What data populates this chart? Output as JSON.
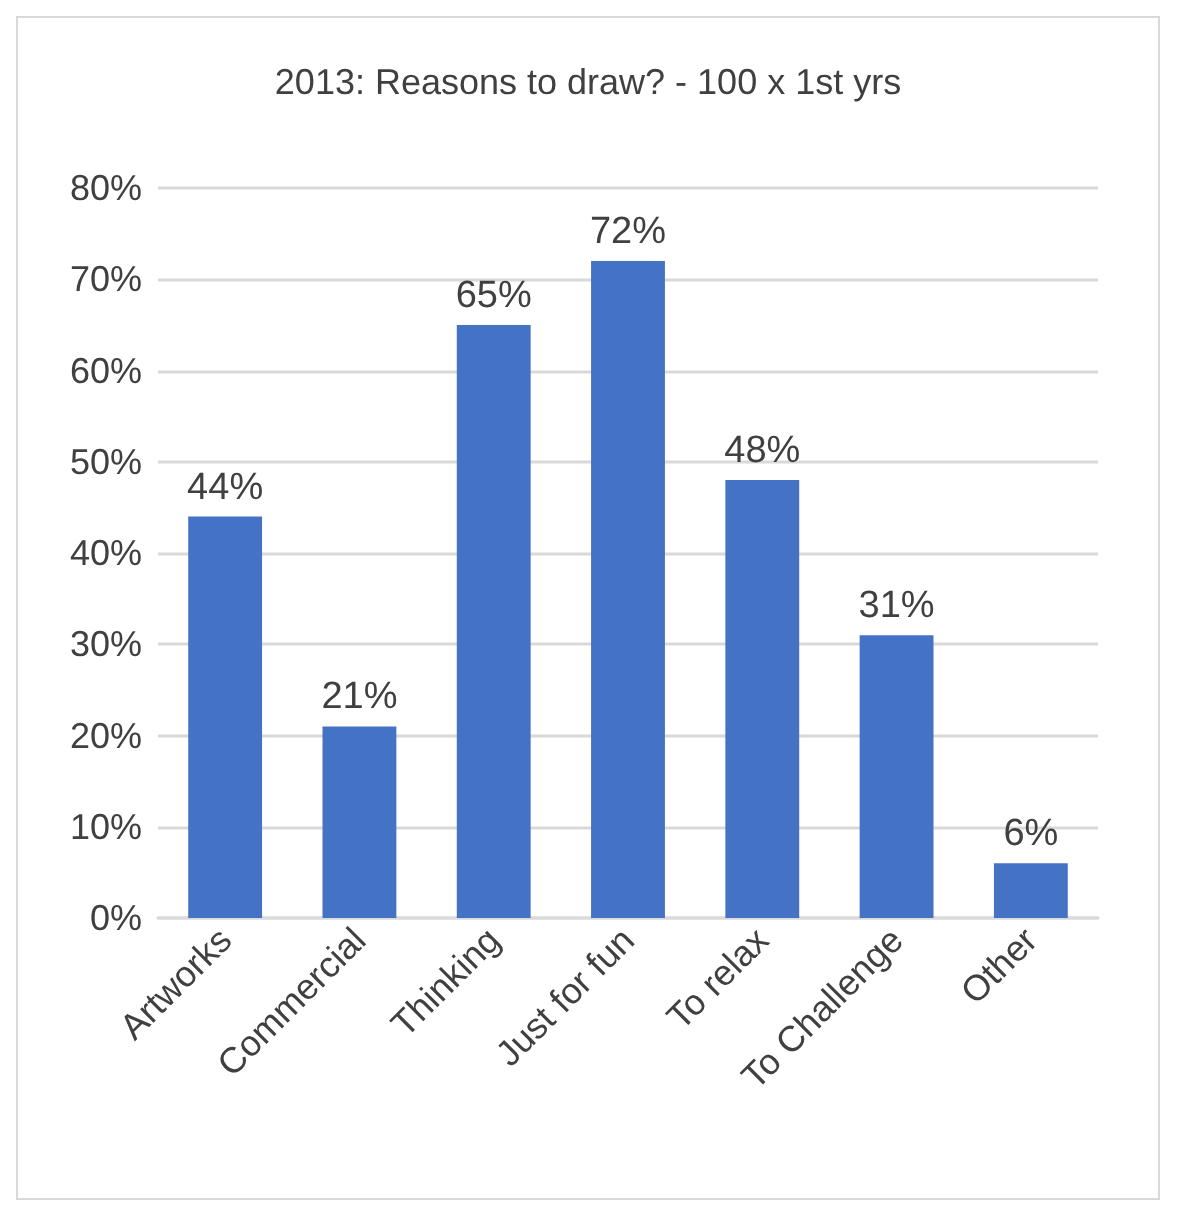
{
  "chart_data": {
    "type": "bar",
    "title": "2013: Reasons to draw? - 100 x 1st yrs",
    "categories": [
      "Artworks",
      "Commercial",
      "Thinking",
      "Just for fun",
      "To relax",
      "To Challenge",
      "Other"
    ],
    "values": [
      44,
      21,
      65,
      72,
      48,
      31,
      6
    ],
    "value_labels": [
      "44%",
      "21%",
      "65%",
      "72%",
      "48%",
      "31%",
      "6%"
    ],
    "color": "#4472c4",
    "ylim": [
      0,
      80
    ],
    "yticks": [
      {
        "value": 0,
        "label": "0%"
      },
      {
        "value": 10,
        "label": "10%"
      },
      {
        "value": 20,
        "label": "20%"
      },
      {
        "value": 30,
        "label": "30%"
      },
      {
        "value": 40,
        "label": "40%"
      },
      {
        "value": 50,
        "label": "50%"
      },
      {
        "value": 60,
        "label": "60%"
      },
      {
        "value": 70,
        "label": "70%"
      },
      {
        "value": 80,
        "label": "80%"
      }
    ],
    "grid": "y"
  }
}
